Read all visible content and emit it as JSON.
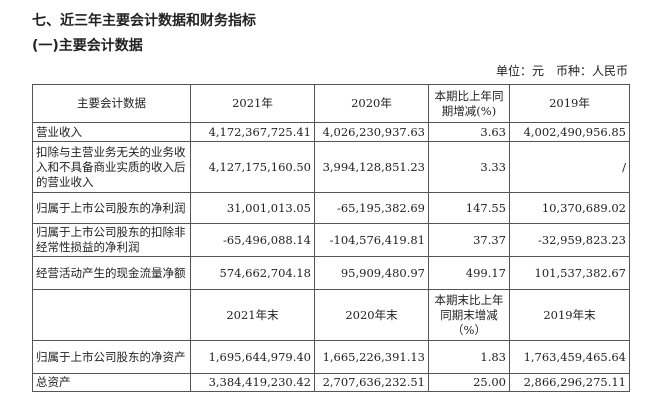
{
  "section_title": "七、近三年主要会计数据和财务指标",
  "subsection_title": "(一)主要会计数据",
  "unit_note": "单位：元　币种：人民币",
  "header1": [
    "主要会计数据",
    "2021年",
    "2020年",
    "本期比上年同期增减(%)",
    "2019年"
  ],
  "rows1": [
    [
      "营业收入",
      "4,172,367,725.41",
      "4,026,230,937.63",
      "3.63",
      "4,002,490,956.85"
    ],
    [
      "扣除与主营业务无关的业务收入和不具备商业实质的收入后的营业收入",
      "4,127,175,160.50",
      "3,994,128,851.23",
      "3.33",
      "/"
    ],
    [
      "归属于上市公司股东的净利润",
      "31,001,013.05",
      "-65,195,382.69",
      "147.55",
      "10,370,689.02"
    ],
    [
      "归属于上市公司股东的扣除非经常性损益的净利润",
      "-65,496,088.14",
      "-104,576,419.81",
      "37.37",
      "-32,959,823.23"
    ],
    [
      "经营活动产生的现金流量净额",
      "574,662,704.18",
      "95,909,480.97",
      "499.17",
      "101,537,382.67"
    ]
  ],
  "header2": [
    "",
    "2021年末",
    "2020年末",
    "本期末比上年同期末增减（%）",
    "2019年末"
  ],
  "rows2": [
    [
      "归属于上市公司股东的净资产",
      "1,695,644,979.40",
      "1,665,226,391.13",
      "1.83",
      "1,763,459,465.64"
    ],
    [
      "总资产",
      "3,384,419,230.42",
      "2,707,636,232.51",
      "25.00",
      "2,866,296,275.11"
    ]
  ]
}
